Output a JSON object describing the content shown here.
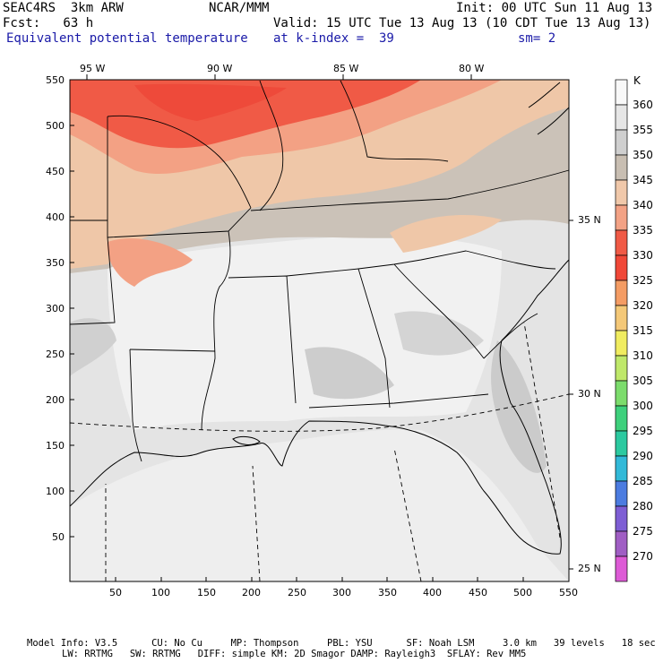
{
  "header": {
    "title_left": "SEAC4RS  3km ARW",
    "title_center": "NCAR/MMM",
    "init": "Init: 00 UTC Sun 11 Aug 13",
    "fcst": "Fcst:   63 h",
    "valid": "Valid: 15 UTC Tue 13 Aug 13 (10 CDT Tue 13 Aug 13)",
    "field": "Equivalent potential temperature",
    "level": "at k-index =  39",
    "smooth": "sm= 2"
  },
  "colorbar": {
    "unit": "K",
    "levels": [
      {
        "label": "360",
        "color": "#f8f8f8"
      },
      {
        "label": "355",
        "color": "#e6e6e6"
      },
      {
        "label": "350",
        "color": "#cfcfcf"
      },
      {
        "label": "345",
        "color": "#c8beb2"
      },
      {
        "label": "340",
        "color": "#f0c8aa"
      },
      {
        "label": "335",
        "color": "#f3a285"
      },
      {
        "label": "330",
        "color": "#f05a46"
      },
      {
        "label": "325",
        "color": "#f04838"
      },
      {
        "label": "320",
        "color": "#f49c64"
      },
      {
        "label": "315",
        "color": "#f4c878"
      },
      {
        "label": "310",
        "color": "#f0ec60"
      },
      {
        "label": "305",
        "color": "#bfe86a"
      },
      {
        "label": "300",
        "color": "#7cdc6c"
      },
      {
        "label": "295",
        "color": "#3ed07c"
      },
      {
        "label": "290",
        "color": "#2cc9a0"
      },
      {
        "label": "285",
        "color": "#32b9d8"
      },
      {
        "label": "280",
        "color": "#4c7ce0"
      },
      {
        "label": "275",
        "color": "#7e5ed4"
      },
      {
        "label": "270",
        "color": "#a05ec4"
      },
      {
        "label": "",
        "color": "#dd5bd6"
      }
    ]
  },
  "axes": {
    "x_ticks": [
      "50",
      "100",
      "150",
      "200",
      "250",
      "300",
      "350",
      "400",
      "450",
      "500",
      "550"
    ],
    "y_ticks": [
      "550",
      "500",
      "450",
      "400",
      "350",
      "300",
      "250",
      "200",
      "150",
      "100",
      "50"
    ],
    "lon_labels": [
      "95 W",
      "90 W",
      "85 W",
      "80 W"
    ],
    "lat_labels": [
      "35 N",
      "30 N",
      "25 N"
    ]
  },
  "footer": {
    "line1": "Model Info: V3.5      CU: No Cu     MP: Thompson     PBL: YSU      SF: Noah LSM     3.0 km   39 levels   18 sec",
    "line2": "LW: RRTMG   SW: RRTMG   DIFF: simple KM: 2D Smagor DAMP: Rayleigh3  SFLAY: Rev MM5"
  }
}
